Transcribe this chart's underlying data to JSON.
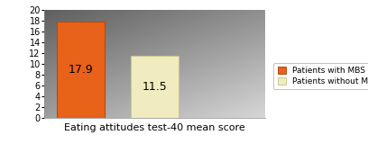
{
  "categories": [
    "Patients with MBS",
    "Patients without MBS"
  ],
  "values": [
    17.9,
    11.5
  ],
  "bar_colors": [
    "#E8621A",
    "#F0ECC0"
  ],
  "bar_edge_colors": [
    "#B84A10",
    "#C8C890"
  ],
  "xlabel": "Eating attitudes test-40 mean score",
  "ylim": [
    0,
    20
  ],
  "yticks": [
    0,
    2,
    4,
    6,
    8,
    10,
    12,
    14,
    16,
    18,
    20
  ],
  "bar_labels": [
    "17.9",
    "11.5"
  ],
  "legend_labels": [
    "Patients with MBS",
    "Patients without MBS"
  ],
  "legend_colors": [
    "#E8621A",
    "#F0ECC0"
  ],
  "legend_edge_colors": [
    "#B84A10",
    "#C8C890"
  ],
  "bar_label_fontsize": 9,
  "xlabel_fontsize": 8,
  "ytick_fontsize": 7,
  "legend_fontsize": 6.5
}
